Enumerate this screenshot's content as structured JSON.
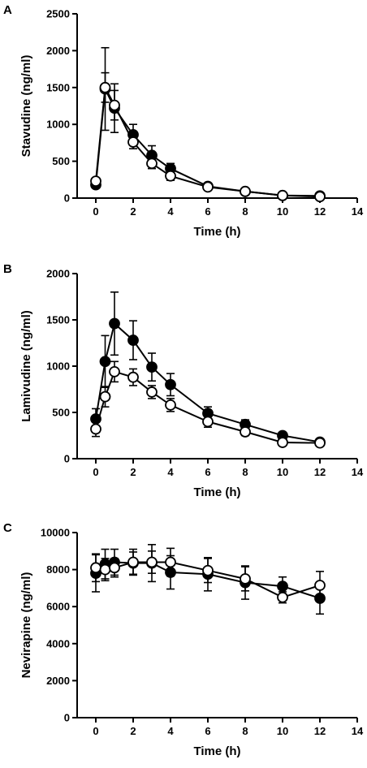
{
  "chart_data": [
    {
      "type": "line",
      "panel_label": "A",
      "xlabel": "Time (h)",
      "ylabel": "Stavudine (ng/ml)",
      "xlim": [
        -1,
        14
      ],
      "ylim": [
        0,
        2500
      ],
      "xticks": [
        0,
        2,
        4,
        6,
        8,
        10,
        12,
        14
      ],
      "yticks": [
        0,
        500,
        1000,
        1500,
        2000,
        2500
      ],
      "grid": false,
      "legend": "none",
      "series": [
        {
          "marker": "filled-circle",
          "x": [
            0,
            0.5,
            1,
            2,
            3,
            4,
            6,
            8,
            10,
            12
          ],
          "y": [
            180,
            1480,
            1220,
            860,
            580,
            400,
            160,
            90,
            35,
            30
          ],
          "err": [
            40,
            560,
            330,
            140,
            130,
            70,
            20,
            15,
            10,
            8
          ]
        },
        {
          "marker": "open-circle",
          "x": [
            0,
            0.5,
            1,
            2,
            3,
            4,
            6,
            8,
            10,
            12
          ],
          "y": [
            230,
            1500,
            1260,
            760,
            470,
            300,
            150,
            90,
            35,
            20
          ],
          "err": [
            40,
            200,
            200,
            90,
            70,
            60,
            20,
            15,
            10,
            8
          ]
        }
      ]
    },
    {
      "type": "line",
      "panel_label": "B",
      "xlabel": "Time (h)",
      "ylabel": "Lamivudine (ng/ml)",
      "xlim": [
        -1,
        14
      ],
      "ylim": [
        0,
        2000
      ],
      "xticks": [
        0,
        2,
        4,
        6,
        8,
        10,
        12,
        14
      ],
      "yticks": [
        0,
        500,
        1000,
        1500,
        2000
      ],
      "grid": false,
      "legend": "none",
      "series": [
        {
          "marker": "filled-circle",
          "x": [
            0,
            0.5,
            1,
            2,
            3,
            4,
            6,
            8,
            10,
            12
          ],
          "y": [
            430,
            1050,
            1460,
            1280,
            990,
            800,
            490,
            370,
            250,
            180
          ],
          "err": [
            110,
            280,
            340,
            210,
            150,
            120,
            70,
            50,
            30,
            20
          ]
        },
        {
          "marker": "open-circle",
          "x": [
            0,
            0.5,
            1,
            2,
            3,
            4,
            6,
            8,
            10,
            12
          ],
          "y": [
            320,
            670,
            940,
            880,
            720,
            580,
            400,
            290,
            175,
            170
          ],
          "err": [
            80,
            110,
            110,
            90,
            70,
            70,
            60,
            40,
            25,
            20
          ]
        }
      ]
    },
    {
      "type": "line",
      "panel_label": "C",
      "xlabel": "Time (h)",
      "ylabel": "Nevirapine (ng/ml)",
      "xlim": [
        -1,
        14
      ],
      "ylim": [
        0,
        10000
      ],
      "xticks": [
        0,
        2,
        4,
        6,
        8,
        10,
        12,
        14
      ],
      "yticks": [
        0,
        2000,
        4000,
        6000,
        8000,
        10000
      ],
      "grid": false,
      "legend": "none",
      "series": [
        {
          "marker": "filled-circle",
          "x": [
            0,
            0.5,
            1,
            2,
            3,
            4,
            6,
            8,
            10,
            12
          ],
          "y": [
            7800,
            8300,
            8400,
            8350,
            8350,
            7850,
            7750,
            7300,
            7100,
            6450
          ],
          "err": [
            1000,
            800,
            700,
            600,
            1000,
            900,
            900,
            900,
            500,
            850
          ]
        },
        {
          "marker": "open-circle",
          "x": [
            0,
            0.5,
            1,
            2,
            3,
            4,
            6,
            8,
            10,
            12
          ],
          "y": [
            8100,
            8000,
            8100,
            8400,
            8400,
            8400,
            7950,
            7500,
            6500,
            7150
          ],
          "err": [
            750,
            600,
            500,
            700,
            600,
            750,
            650,
            650,
            300,
            750
          ]
        }
      ]
    }
  ]
}
